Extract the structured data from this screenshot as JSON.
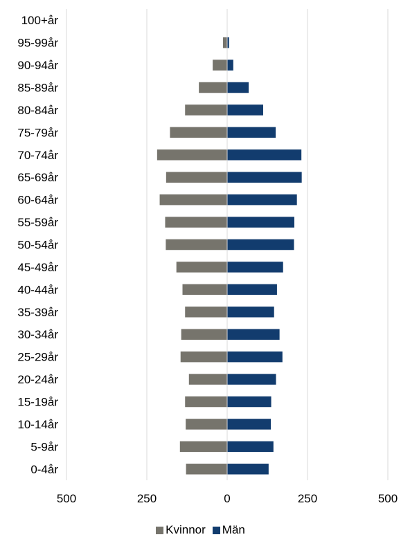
{
  "chart_data": {
    "type": "bar",
    "orientation": "horizontal",
    "stacking": "diverging",
    "title": "",
    "xlabel": "",
    "ylabel": "",
    "xlim": [
      -500,
      500
    ],
    "xticks": [
      -500,
      -250,
      0,
      250,
      500
    ],
    "xtick_labels": [
      "500",
      "250",
      "0",
      "250",
      "500"
    ],
    "grid": true,
    "legend_position": "bottom",
    "categories": [
      "100+år",
      "95-99år",
      "90-94år",
      "85-89år",
      "80-84år",
      "75-79år",
      "70-74år",
      "65-69år",
      "60-64år",
      "55-59år",
      "50-54år",
      "45-49år",
      "40-44år",
      "35-39år",
      "30-34år",
      "25-29år",
      "20-24år",
      "15-19år",
      "10-14år",
      "5-9år",
      "0-4år"
    ],
    "series": [
      {
        "name": "Kvinnor",
        "color": "#76746c",
        "values": [
          1,
          13,
          45,
          88,
          131,
          178,
          218,
          190,
          210,
          193,
          191,
          158,
          139,
          131,
          143,
          145,
          119,
          131,
          129,
          147,
          128
        ]
      },
      {
        "name": "Män",
        "color": "#123c6e",
        "values": [
          1,
          6,
          19,
          67,
          112,
          151,
          231,
          232,
          217,
          209,
          208,
          174,
          155,
          146,
          163,
          172,
          152,
          137,
          136,
          144,
          129
        ]
      }
    ]
  }
}
